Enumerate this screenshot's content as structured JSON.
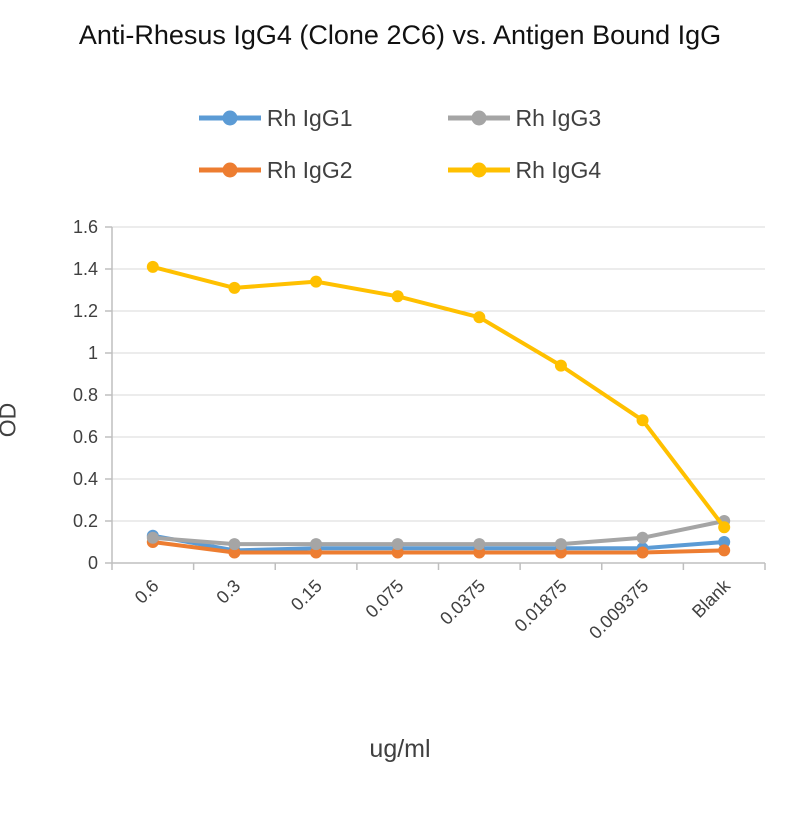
{
  "title": "Anti-Rhesus IgG4 (Clone 2C6) vs. Antigen Bound IgG",
  "chart_data": {
    "type": "line",
    "categories": [
      "0.6",
      "0.3",
      "0.15",
      "0.075",
      "0.0375",
      "0.01875",
      "0.009375",
      "Blank"
    ],
    "series": [
      {
        "name": "Rh IgG1",
        "color": "#5B9BD5",
        "values": [
          0.13,
          0.06,
          0.07,
          0.07,
          0.07,
          0.07,
          0.07,
          0.1
        ]
      },
      {
        "name": "Rh IgG2",
        "color": "#ED7D31",
        "values": [
          0.1,
          0.05,
          0.05,
          0.05,
          0.05,
          0.05,
          0.05,
          0.06
        ]
      },
      {
        "name": "Rh IgG3",
        "color": "#A5A5A5",
        "values": [
          0.12,
          0.09,
          0.09,
          0.09,
          0.09,
          0.09,
          0.12,
          0.2
        ]
      },
      {
        "name": "Rh IgG4",
        "color": "#FFC000",
        "values": [
          1.41,
          1.31,
          1.34,
          1.27,
          1.17,
          0.94,
          0.68,
          0.17
        ]
      }
    ],
    "title": "Anti-Rhesus IgG4 (Clone 2C6) vs. Antigen Bound IgG",
    "xlabel": "ug/ml",
    "ylabel": "OD",
    "ylim": [
      0,
      1.6
    ],
    "ytick_step": 0.2,
    "grid": true,
    "legend_position": "top",
    "axis_color": "#BFBFBF",
    "grid_color": "#D9D9D9",
    "tick_label_color": "#404040"
  }
}
